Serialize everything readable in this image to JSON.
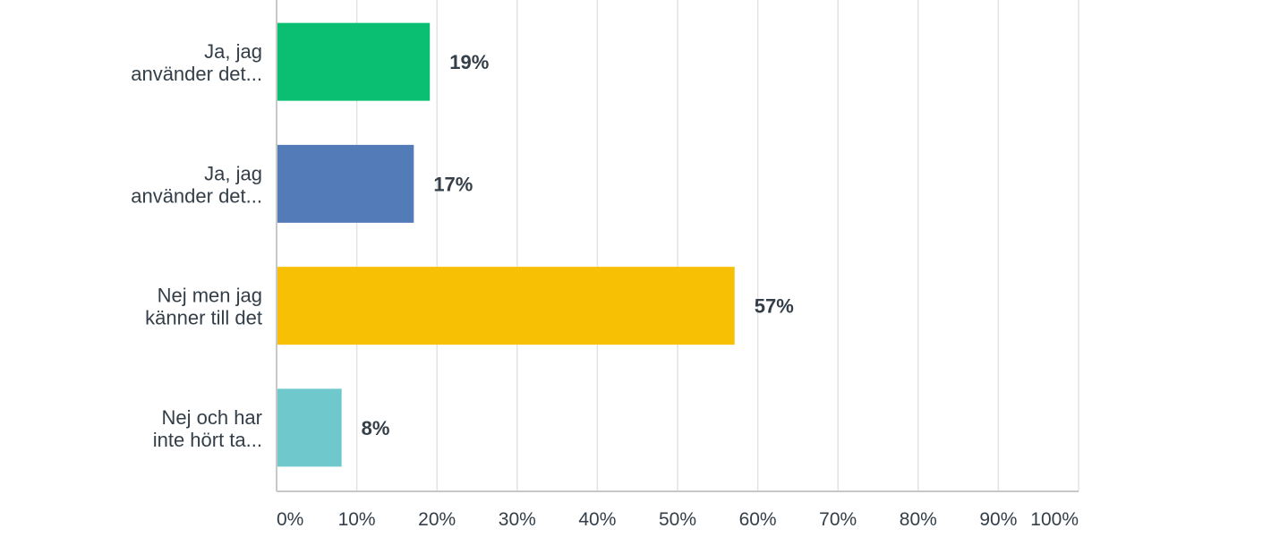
{
  "chart_data": {
    "type": "bar",
    "orientation": "horizontal",
    "categories": [
      [
        "Ja, jag",
        "använder det..."
      ],
      [
        "Ja, jag",
        "använder det..."
      ],
      [
        "Nej men jag",
        "känner till det"
      ],
      [
        "Nej och har",
        "inte hört ta..."
      ]
    ],
    "values": [
      19,
      17,
      57,
      8
    ],
    "value_labels": [
      "19%",
      "17%",
      "57%",
      "8%"
    ],
    "colors": [
      "#0abf72",
      "#527bb8",
      "#f7c005",
      "#6fc9cc"
    ],
    "xlim": [
      0,
      100
    ],
    "x_ticks": [
      "0%",
      "10%",
      "20%",
      "30%",
      "40%",
      "50%",
      "60%",
      "70%",
      "80%",
      "90%",
      "100%"
    ],
    "grid": true
  }
}
